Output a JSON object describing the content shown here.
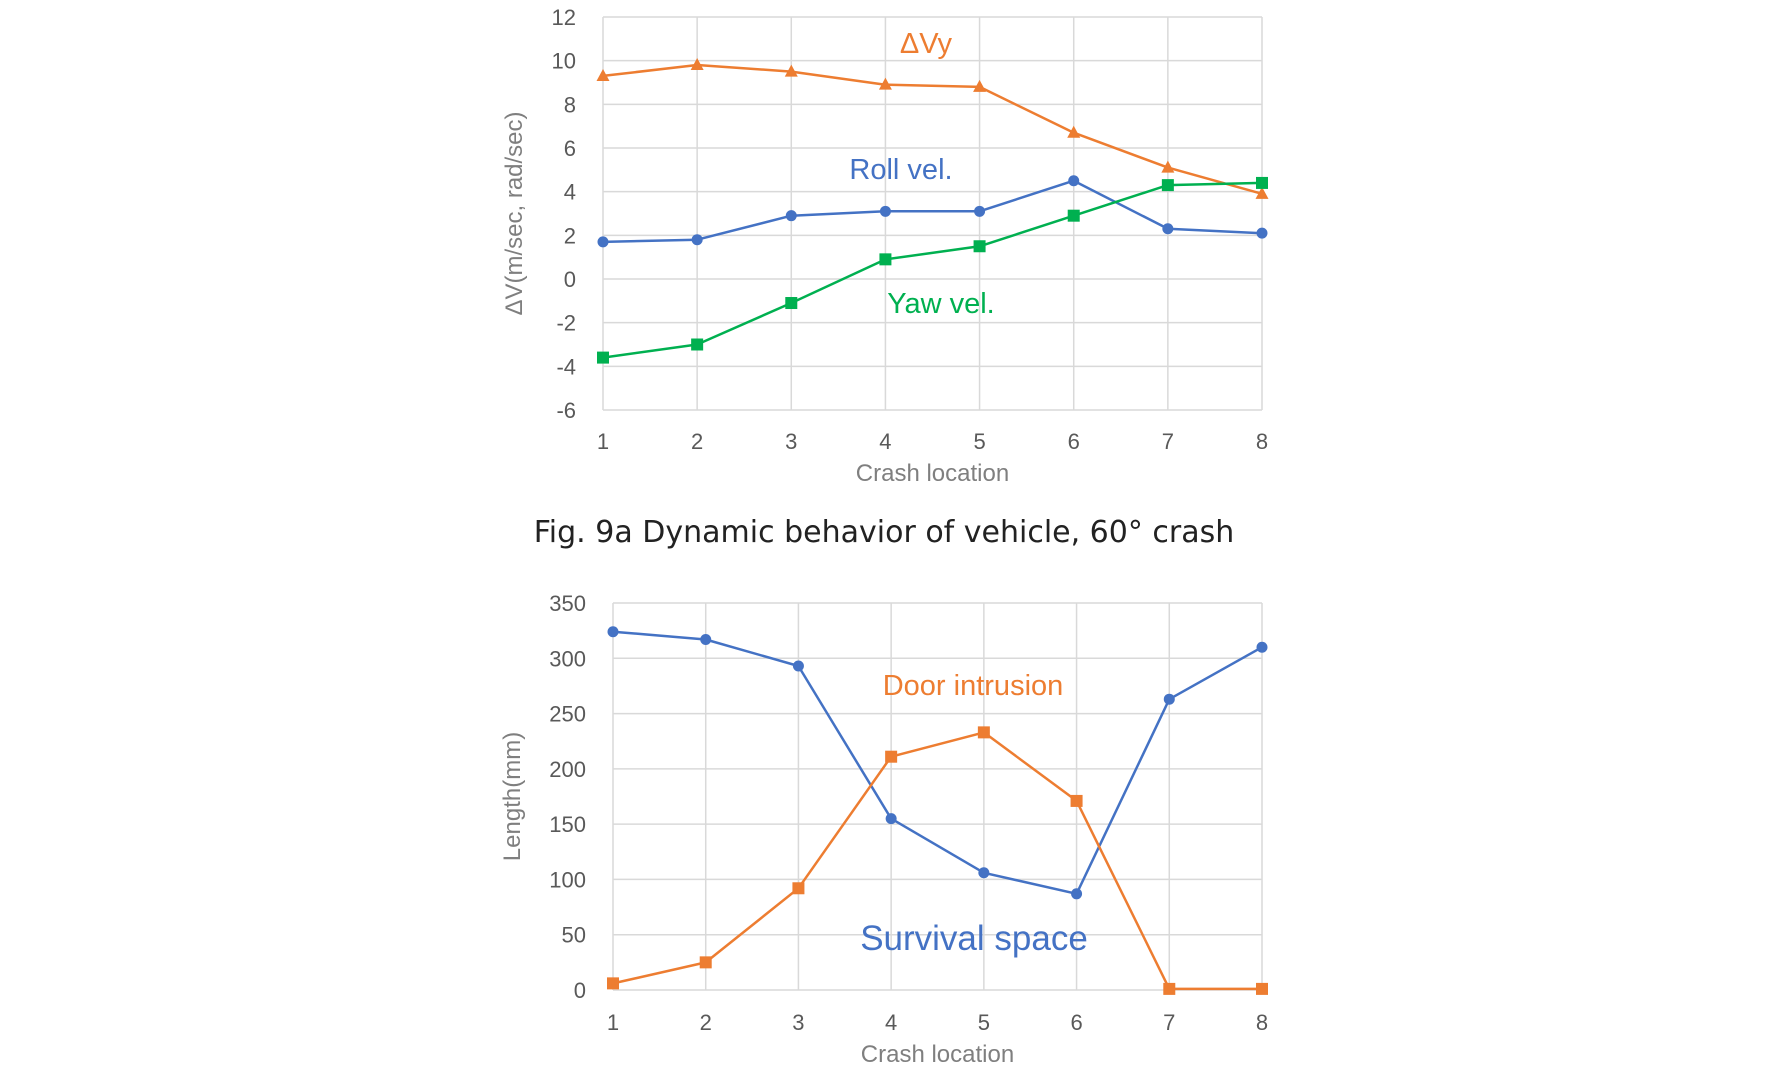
{
  "chart_data": [
    {
      "type": "line",
      "caption": "Fig. 9a Dynamic behavior of vehicle, 60° crash",
      "xlabel": "Crash location",
      "ylabel": "ΔV(m/sec, rad/sec)",
      "x": [
        1,
        2,
        3,
        4,
        5,
        6,
        7,
        8
      ],
      "ylim": [
        -6,
        12
      ],
      "yticks": [
        -6,
        -4,
        -2,
        0,
        2,
        4,
        6,
        8,
        10,
        12
      ],
      "grid": true,
      "series": [
        {
          "name": "ΔVy",
          "marker": "triangle",
          "color": "#ED7D31",
          "values": [
            9.3,
            9.8,
            9.5,
            8.9,
            8.8,
            6.7,
            5.1,
            3.9
          ]
        },
        {
          "name": "Roll vel.",
          "marker": "circle",
          "color": "#4472C4",
          "values": [
            1.7,
            1.8,
            2.9,
            3.1,
            3.1,
            4.5,
            2.3,
            2.1
          ]
        },
        {
          "name": "Yaw vel.",
          "marker": "square",
          "color": "#00B050",
          "values": [
            -3.6,
            -3.0,
            -1.1,
            0.9,
            1.5,
            2.9,
            4.3,
            4.4
          ]
        }
      ]
    },
    {
      "type": "line",
      "xlabel": "Crash location",
      "ylabel": "Length(mm)",
      "x": [
        1,
        2,
        3,
        4,
        5,
        6,
        7,
        8
      ],
      "ylim": [
        0,
        350
      ],
      "yticks": [
        0,
        50,
        100,
        150,
        200,
        250,
        300,
        350
      ],
      "grid": true,
      "series": [
        {
          "name": "Survival space",
          "marker": "circle",
          "color": "#4472C4",
          "values": [
            324,
            317,
            293,
            155,
            106,
            87,
            263,
            310
          ]
        },
        {
          "name": "Door intrusion",
          "marker": "square",
          "color": "#ED7D31",
          "values": [
            6,
            25,
            92,
            211,
            233,
            171,
            1,
            1
          ]
        }
      ]
    }
  ]
}
